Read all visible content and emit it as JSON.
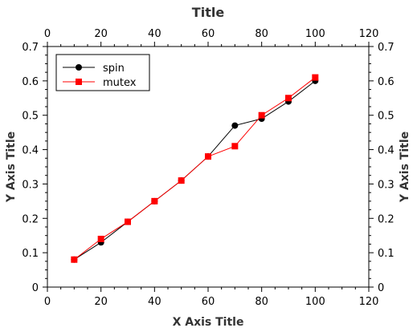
{
  "chart_data": {
    "type": "line",
    "title": "Title",
    "xlabel": "X Axis Title",
    "ylabel": "Y Axis Title",
    "y2label": "Y Axis Title",
    "xlim": [
      0,
      120
    ],
    "ylim": [
      0,
      0.7
    ],
    "x_ticks": [
      0,
      20,
      40,
      60,
      80,
      100,
      120
    ],
    "y_ticks": [
      0,
      0.1,
      0.2,
      0.3,
      0.4,
      0.5,
      0.6,
      0.7
    ],
    "y_tick_labels": [
      "0",
      "0.1",
      "0.2",
      "0.3",
      "0.4",
      "0.5",
      "0.6",
      "0.7"
    ],
    "grid": false,
    "mirror_axes": true,
    "legend_position": "top-left",
    "series": [
      {
        "name": "spin",
        "color": "#000000",
        "marker": "circle",
        "x": [
          10,
          20,
          30,
          40,
          50,
          60,
          70,
          80,
          90,
          100
        ],
        "y": [
          0.08,
          0.13,
          0.19,
          0.25,
          0.31,
          0.38,
          0.47,
          0.49,
          0.54,
          0.6
        ]
      },
      {
        "name": "mutex",
        "color": "#ff0000",
        "marker": "square",
        "x": [
          10,
          20,
          30,
          40,
          50,
          60,
          70,
          80,
          90,
          100
        ],
        "y": [
          0.08,
          0.14,
          0.19,
          0.25,
          0.31,
          0.38,
          0.41,
          0.5,
          0.55,
          0.61
        ]
      }
    ]
  }
}
